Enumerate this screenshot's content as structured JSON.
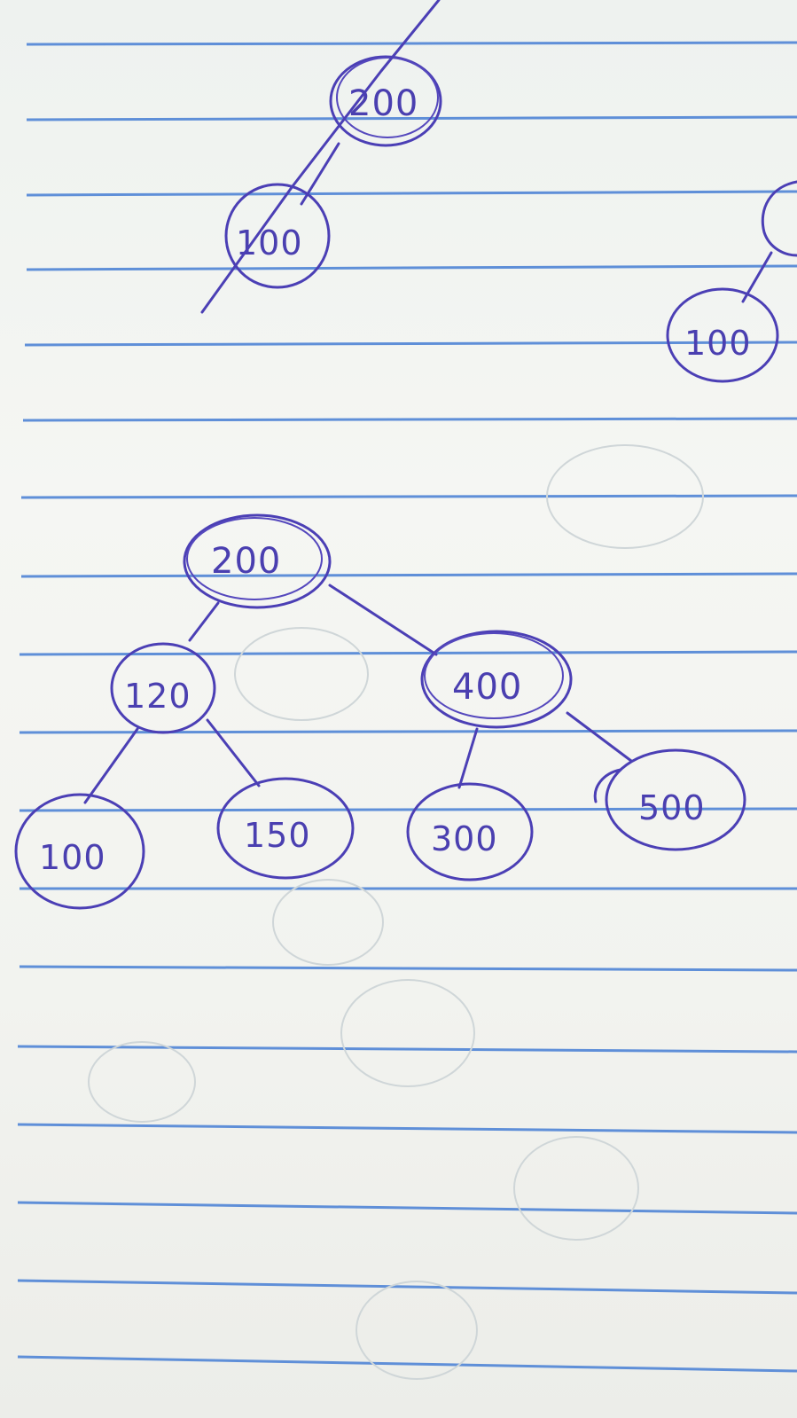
{
  "colors": {
    "ink": "#4b3fb5",
    "rule_line": "#5f8fd8",
    "paper": "#f3f5f2"
  },
  "sketch_top": {
    "root": "200",
    "left_child": "100",
    "right_partial_child": "100"
  },
  "tree": {
    "root": "200",
    "left": "120",
    "right": "400",
    "left_left": "100",
    "left_right": "150",
    "right_left": "300",
    "right_right": "500"
  }
}
